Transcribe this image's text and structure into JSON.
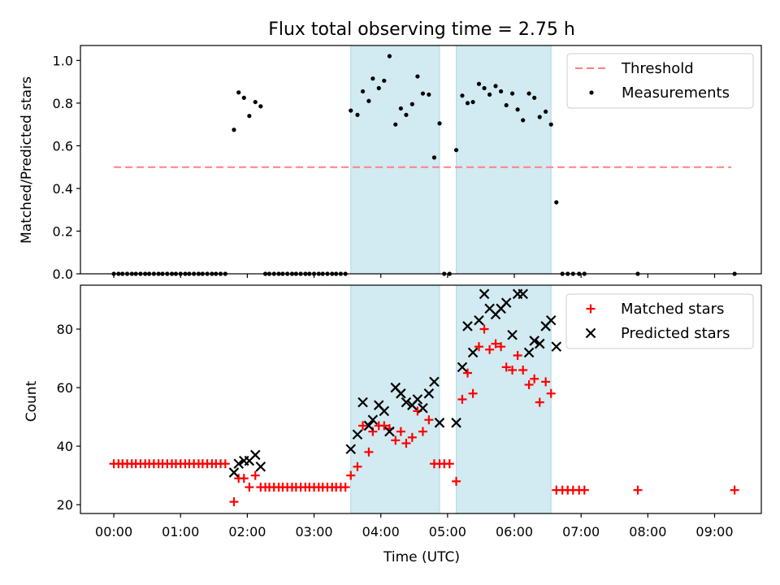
{
  "chart_data": {
    "type": "scatter",
    "title": "Flux total observing time = 2.75 h",
    "xlabel": "Time (UTC)",
    "x_unit": "hours UTC",
    "xlim": [
      -0.5,
      9.7
    ],
    "x_tick_labels": [
      "00:00",
      "01:00",
      "02:00",
      "03:00",
      "04:00",
      "05:00",
      "06:00",
      "07:00",
      "08:00",
      "09:00"
    ],
    "shaded_intervals": [
      {
        "start": 3.55,
        "end": 4.88
      },
      {
        "start": 5.13,
        "end": 6.55
      }
    ],
    "shade_color": "#add8e6",
    "panels": [
      {
        "ylabel": "Matched/Predicted stars",
        "ylim": [
          0,
          1.07
        ],
        "y_ticks": [
          "0.0",
          "0.2",
          "0.4",
          "0.6",
          "0.8",
          "1.0"
        ],
        "legend_position": "upper right",
        "series": [
          {
            "name": "Threshold",
            "kind": "line",
            "style": "dashed",
            "color": "#ff8080",
            "points": [
              [
                0,
                0.5
              ],
              [
                9.25,
                0.5
              ]
            ]
          },
          {
            "name": "Measurements",
            "kind": "dot",
            "color": "#000000",
            "points": [
              [
                0.0,
                0
              ],
              [
                0.07,
                0
              ],
              [
                0.13,
                0
              ],
              [
                0.2,
                0
              ],
              [
                0.27,
                0
              ],
              [
                0.33,
                0
              ],
              [
                0.4,
                0
              ],
              [
                0.47,
                0
              ],
              [
                0.53,
                0
              ],
              [
                0.6,
                0
              ],
              [
                0.67,
                0
              ],
              [
                0.73,
                0
              ],
              [
                0.8,
                0
              ],
              [
                0.87,
                0
              ],
              [
                0.93,
                0
              ],
              [
                1.0,
                0
              ],
              [
                1.07,
                0
              ],
              [
                1.13,
                0
              ],
              [
                1.2,
                0
              ],
              [
                1.27,
                0
              ],
              [
                1.33,
                0
              ],
              [
                1.4,
                0
              ],
              [
                1.47,
                0
              ],
              [
                1.53,
                0
              ],
              [
                1.6,
                0
              ],
              [
                1.67,
                0
              ],
              [
                1.8,
                0.675
              ],
              [
                1.87,
                0.85
              ],
              [
                1.95,
                0.825
              ],
              [
                2.03,
                0.74
              ],
              [
                2.12,
                0.805
              ],
              [
                2.2,
                0.785
              ],
              [
                2.27,
                0
              ],
              [
                2.33,
                0
              ],
              [
                2.4,
                0
              ],
              [
                2.47,
                0
              ],
              [
                2.53,
                0
              ],
              [
                2.6,
                0
              ],
              [
                2.67,
                0
              ],
              [
                2.73,
                0
              ],
              [
                2.8,
                0
              ],
              [
                2.87,
                0
              ],
              [
                2.93,
                0
              ],
              [
                3.0,
                0
              ],
              [
                3.07,
                0
              ],
              [
                3.13,
                0
              ],
              [
                3.2,
                0
              ],
              [
                3.27,
                0
              ],
              [
                3.33,
                0
              ],
              [
                3.4,
                0
              ],
              [
                3.47,
                0
              ],
              [
                3.55,
                0.765
              ],
              [
                3.65,
                0.745
              ],
              [
                3.73,
                0.855
              ],
              [
                3.82,
                0.81
              ],
              [
                3.88,
                0.915
              ],
              [
                3.97,
                0.87
              ],
              [
                4.05,
                0.905
              ],
              [
                4.13,
                1.02
              ],
              [
                4.22,
                0.7
              ],
              [
                4.3,
                0.775
              ],
              [
                4.38,
                0.745
              ],
              [
                4.47,
                0.795
              ],
              [
                4.55,
                0.925
              ],
              [
                4.63,
                0.845
              ],
              [
                4.72,
                0.84
              ],
              [
                4.8,
                0.545
              ],
              [
                4.88,
                0.705
              ],
              [
                4.95,
                0
              ],
              [
                5.03,
                0
              ],
              [
                5.13,
                0.58
              ],
              [
                5.22,
                0.835
              ],
              [
                5.3,
                0.8
              ],
              [
                5.38,
                0.805
              ],
              [
                5.47,
                0.89
              ],
              [
                5.55,
                0.87
              ],
              [
                5.63,
                0.84
              ],
              [
                5.72,
                0.88
              ],
              [
                5.8,
                0.855
              ],
              [
                5.88,
                0.79
              ],
              [
                5.97,
                0.845
              ],
              [
                6.05,
                0.77
              ],
              [
                6.13,
                0.72
              ],
              [
                6.22,
                0.845
              ],
              [
                6.3,
                0.825
              ],
              [
                6.38,
                0.735
              ],
              [
                6.47,
                0.76
              ],
              [
                6.55,
                0.7
              ],
              [
                6.63,
                0.335
              ],
              [
                6.72,
                0
              ],
              [
                6.8,
                0
              ],
              [
                6.88,
                0
              ],
              [
                6.97,
                0
              ],
              [
                7.05,
                0
              ],
              [
                7.85,
                0
              ],
              [
                9.3,
                0
              ]
            ]
          }
        ]
      },
      {
        "ylabel": "Count",
        "ylim": [
          17,
          95
        ],
        "y_ticks": [
          "20",
          "40",
          "60",
          "80"
        ],
        "legend_position": "upper right",
        "series": [
          {
            "name": "Matched stars",
            "kind": "plus",
            "color": "#ff0000",
            "points": [
              [
                0.0,
                34
              ],
              [
                0.07,
                34
              ],
              [
                0.13,
                34
              ],
              [
                0.2,
                34
              ],
              [
                0.27,
                34
              ],
              [
                0.33,
                34
              ],
              [
                0.4,
                34
              ],
              [
                0.47,
                34
              ],
              [
                0.53,
                34
              ],
              [
                0.6,
                34
              ],
              [
                0.67,
                34
              ],
              [
                0.73,
                34
              ],
              [
                0.8,
                34
              ],
              [
                0.87,
                34
              ],
              [
                0.93,
                34
              ],
              [
                1.0,
                34
              ],
              [
                1.07,
                34
              ],
              [
                1.13,
                34
              ],
              [
                1.2,
                34
              ],
              [
                1.27,
                34
              ],
              [
                1.33,
                34
              ],
              [
                1.4,
                34
              ],
              [
                1.47,
                34
              ],
              [
                1.53,
                34
              ],
              [
                1.6,
                34
              ],
              [
                1.67,
                34
              ],
              [
                1.8,
                21
              ],
              [
                1.87,
                29
              ],
              [
                1.95,
                29
              ],
              [
                2.03,
                26
              ],
              [
                2.12,
                30
              ],
              [
                2.2,
                26
              ],
              [
                2.27,
                26
              ],
              [
                2.33,
                26
              ],
              [
                2.4,
                26
              ],
              [
                2.47,
                26
              ],
              [
                2.53,
                26
              ],
              [
                2.6,
                26
              ],
              [
                2.67,
                26
              ],
              [
                2.73,
                26
              ],
              [
                2.8,
                26
              ],
              [
                2.87,
                26
              ],
              [
                2.93,
                26
              ],
              [
                3.0,
                26
              ],
              [
                3.07,
                26
              ],
              [
                3.13,
                26
              ],
              [
                3.2,
                26
              ],
              [
                3.27,
                26
              ],
              [
                3.33,
                26
              ],
              [
                3.4,
                26
              ],
              [
                3.47,
                26
              ],
              [
                3.55,
                30
              ],
              [
                3.65,
                33
              ],
              [
                3.73,
                47
              ],
              [
                3.82,
                38
              ],
              [
                3.88,
                45
              ],
              [
                3.97,
                47
              ],
              [
                4.05,
                47
              ],
              [
                4.13,
                46
              ],
              [
                4.22,
                42
              ],
              [
                4.3,
                45
              ],
              [
                4.38,
                41
              ],
              [
                4.47,
                43
              ],
              [
                4.55,
                52
              ],
              [
                4.63,
                45
              ],
              [
                4.72,
                49
              ],
              [
                4.8,
                34
              ],
              [
                4.88,
                34
              ],
              [
                4.95,
                34
              ],
              [
                5.03,
                34
              ],
              [
                5.13,
                28
              ],
              [
                5.22,
                56
              ],
              [
                5.3,
                65
              ],
              [
                5.38,
                58
              ],
              [
                5.47,
                74
              ],
              [
                5.55,
                80
              ],
              [
                5.63,
                73
              ],
              [
                5.72,
                75
              ],
              [
                5.8,
                74
              ],
              [
                5.88,
                67
              ],
              [
                5.97,
                66
              ],
              [
                6.05,
                71
              ],
              [
                6.13,
                66
              ],
              [
                6.22,
                61
              ],
              [
                6.3,
                63
              ],
              [
                6.38,
                55
              ],
              [
                6.47,
                62
              ],
              [
                6.55,
                58
              ],
              [
                6.63,
                25
              ],
              [
                6.72,
                25
              ],
              [
                6.8,
                25
              ],
              [
                6.88,
                25
              ],
              [
                6.97,
                25
              ],
              [
                7.05,
                25
              ],
              [
                7.85,
                25
              ],
              [
                9.3,
                25
              ]
            ]
          },
          {
            "name": "Predicted stars",
            "kind": "x",
            "color": "#000000",
            "points": [
              [
                1.8,
                31
              ],
              [
                1.87,
                34
              ],
              [
                1.95,
                35
              ],
              [
                2.03,
                35
              ],
              [
                2.12,
                37
              ],
              [
                2.2,
                33
              ],
              [
                3.55,
                39
              ],
              [
                3.65,
                44
              ],
              [
                3.73,
                55
              ],
              [
                3.82,
                47
              ],
              [
                3.88,
                49
              ],
              [
                3.97,
                54
              ],
              [
                4.05,
                52
              ],
              [
                4.13,
                45
              ],
              [
                4.22,
                60
              ],
              [
                4.3,
                58
              ],
              [
                4.38,
                55
              ],
              [
                4.47,
                54
              ],
              [
                4.55,
                56
              ],
              [
                4.63,
                53
              ],
              [
                4.72,
                58
              ],
              [
                4.8,
                62
              ],
              [
                4.88,
                48
              ],
              [
                5.13,
                48
              ],
              [
                5.22,
                67
              ],
              [
                5.3,
                81
              ],
              [
                5.38,
                72
              ],
              [
                5.47,
                83
              ],
              [
                5.55,
                92
              ],
              [
                5.63,
                87
              ],
              [
                5.72,
                85
              ],
              [
                5.8,
                87
              ],
              [
                5.88,
                89
              ],
              [
                5.97,
                78
              ],
              [
                6.05,
                92
              ],
              [
                6.13,
                92
              ],
              [
                6.22,
                72
              ],
              [
                6.3,
                76
              ],
              [
                6.38,
                75
              ],
              [
                6.47,
                81
              ],
              [
                6.55,
                83
              ],
              [
                6.63,
                74
              ]
            ]
          }
        ]
      }
    ]
  }
}
